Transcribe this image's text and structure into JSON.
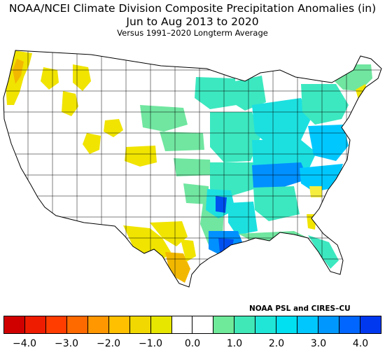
{
  "title": {
    "line1": "NOAA/NCEI Climate Division Composite Precipitation Anomalies (in)",
    "line2": "Jun to Aug 2013 to 2020",
    "line3": "Versus 1991–2020 Longterm Average"
  },
  "credit": "NOAA PSL and CIRES–CU",
  "colorbar": {
    "colors": [
      "#d00000",
      "#ee1c00",
      "#ff3d00",
      "#ff6a00",
      "#ff9700",
      "#ffc000",
      "#f0d800",
      "#e6e600",
      "#ffffff",
      "#ffffff",
      "#6fe99a",
      "#3fe8b6",
      "#1fe6d6",
      "#00e0f0",
      "#00c8ff",
      "#0098ff",
      "#0066ff",
      "#0038f0"
    ],
    "tick_labels": [
      "−4.0",
      "−3.0",
      "−2.0",
      "−1.0",
      "0.0",
      "1.0",
      "2.0",
      "3.0",
      "4.0"
    ]
  },
  "map": {
    "region": "Contiguous United States climate divisions",
    "colors": {
      "no_data_white": "#ffffff",
      "dry_yellow": "#f0e400",
      "dry_yellow_light": "#f5ee3c",
      "dry_orange": "#f2b800",
      "wet_green": "#70e6a0",
      "wet_teal": "#3ce8c0",
      "wet_cyan": "#1ce0e0",
      "wet_sky": "#00c8ff",
      "wet_blue": "#0090ff",
      "wet_deep": "#0050f0",
      "border": "#000000"
    }
  }
}
